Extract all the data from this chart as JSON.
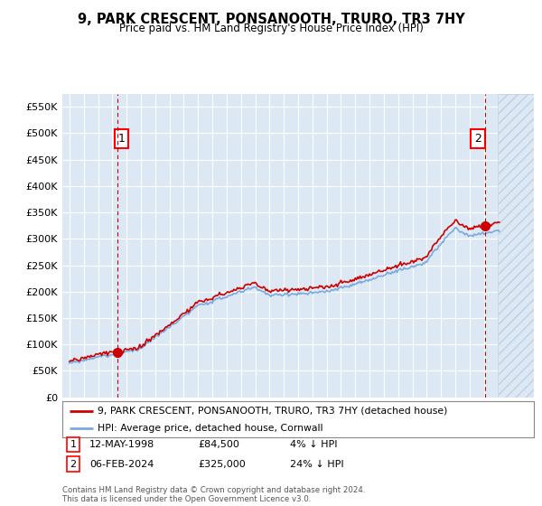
{
  "title": "9, PARK CRESCENT, PONSANOOTH, TRURO, TR3 7HY",
  "subtitle": "Price paid vs. HM Land Registry's House Price Index (HPI)",
  "legend_line1": "9, PARK CRESCENT, PONSANOOTH, TRURO, TR3 7HY (detached house)",
  "legend_line2": "HPI: Average price, detached house, Cornwall",
  "annotation1_label": "1",
  "annotation1_date": "12-MAY-1998",
  "annotation1_price": "£84,500",
  "annotation1_hpi": "4% ↓ HPI",
  "annotation2_label": "2",
  "annotation2_date": "06-FEB-2024",
  "annotation2_price": "£325,000",
  "annotation2_hpi": "24% ↓ HPI",
  "footer": "Contains HM Land Registry data © Crown copyright and database right 2024.\nThis data is licensed under the Open Government Licence v3.0.",
  "sale1_year": 1998.36,
  "sale1_price": 84500,
  "sale2_year": 2024.09,
  "sale2_price": 325000,
  "hpi_color": "#7aaadd",
  "property_color": "#cc0000",
  "sale_dot_color": "#cc0000",
  "background_color": "#ffffff",
  "chart_bg_color": "#dce9f5",
  "grid_color": "#ffffff",
  "ylim_min": 0,
  "ylim_max": 575000,
  "xlim_min": 1994.5,
  "xlim_max": 2027.5,
  "hatch_color": "#c0d0e0"
}
